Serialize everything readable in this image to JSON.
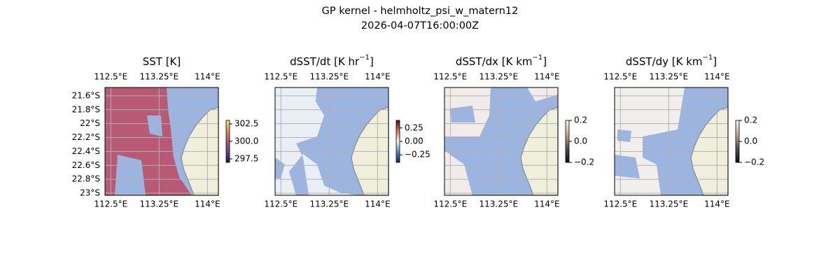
{
  "title": "GP kernel - helmholtz_psi_w_matern12",
  "subtitle": "2026-04-07T16:00:00Z",
  "lonlim": [
    112.41,
    114.17
  ],
  "latlim": [
    -21.48,
    -23.03
  ],
  "lonticks": [
    {
      "value": 112.5,
      "label": "112.5°E"
    },
    {
      "value": 113.25,
      "label": "113.25°E"
    },
    {
      "value": 114,
      "label": "114°E"
    }
  ],
  "latticks": [
    {
      "value": -21.6,
      "label": "21.6°S"
    },
    {
      "value": -21.8,
      "label": "21.8°S"
    },
    {
      "value": -22,
      "label": "22°S"
    },
    {
      "value": -22.2,
      "label": "22.2°S"
    },
    {
      "value": -22.4,
      "label": "22.4°S"
    },
    {
      "value": -22.6,
      "label": "22.6°S"
    },
    {
      "value": -22.8,
      "label": "22.8°S"
    },
    {
      "value": -23,
      "label": "23°S"
    }
  ],
  "panels": [
    {
      "title": "SST [K]",
      "field_color": "#b85a76",
      "colors": [
        "#1b1f4b",
        "#6a3d8f",
        "#c2506d",
        "#ee8a4e",
        "#f7e36a"
      ],
      "clim": [
        297,
        303
      ],
      "cticks": [
        302.5,
        {
          "value": 300,
          "label": "300.0"
        },
        297.5
      ]
    },
    {
      "title": "dSST/dt [K hr",
      "title_sup": "−1",
      "title_end": "]",
      "field_color": "#e9eff5",
      "colors": [
        "#13275e",
        "#4a8fc8",
        "#f4f4f4",
        "#e0704e",
        "#5c0b16"
      ],
      "clim": [
        -0.39,
        0.39
      ],
      "cticks": [
        0.25,
        {
          "value": 0,
          "label": "0.00"
        },
        {
          "value": -0.25,
          "label": "−0.25"
        }
      ]
    },
    {
      "title": "dSST/dx [K km",
      "title_sup": "−1",
      "title_end": "]",
      "field_color": "#f1ecea",
      "colors": [
        "#0e0e12",
        "#55504d",
        "#c9a98e",
        "#fbf3ea"
      ],
      "clim": [
        -0.2,
        0.2
      ],
      "cticks": [
        0.2,
        {
          "value": 0,
          "label": "0.0"
        },
        {
          "value": -0.2,
          "label": "−0.2"
        }
      ]
    },
    {
      "title": "dSST/dy [K km",
      "title_sup": "−1",
      "title_end": "]",
      "field_color": "#f1efeb",
      "colors": [
        "#0e0e12",
        "#55504d",
        "#c9a98e",
        "#fbf3ea"
      ],
      "clim": [
        -0.2,
        0.2
      ],
      "cticks": [
        0.2,
        {
          "value": 0,
          "label": "0.0"
        },
        {
          "value": -0.2,
          "label": "−0.2"
        }
      ]
    }
  ]
}
